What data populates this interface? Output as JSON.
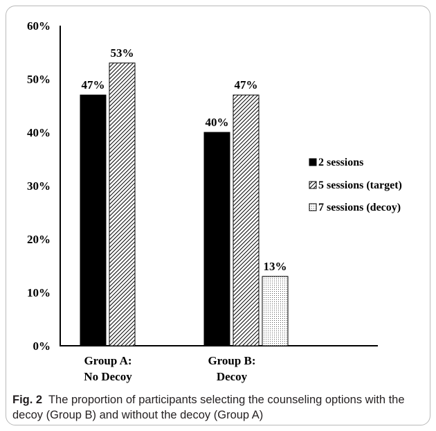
{
  "chart_data": {
    "type": "bar",
    "categories": [
      [
        "Group A:",
        "No Decoy"
      ],
      [
        "Group B:",
        "Decoy"
      ]
    ],
    "series": [
      {
        "name": "2 sessions",
        "values": [
          47,
          40
        ],
        "labels": [
          "47%",
          "40%"
        ],
        "fill": "solid"
      },
      {
        "name": "5 sessions (target)",
        "values": [
          53,
          47
        ],
        "labels": [
          "53%",
          "47%"
        ],
        "fill": "diagonal-hatch"
      },
      {
        "name": "7 sessions (decoy)",
        "values": [
          null,
          13
        ],
        "labels": [
          null,
          "13%"
        ],
        "fill": "dotted"
      }
    ],
    "yticks": [
      "0%",
      "10%",
      "20%",
      "30%",
      "40%",
      "50%",
      "60%"
    ],
    "ylim": [
      0,
      60
    ],
    "xlabel": "",
    "ylabel": "",
    "legend": "right",
    "grid": false,
    "colors": {
      "bar_solid": "#000000",
      "hatch": "#000000",
      "dots": "#000000",
      "axis": "#000000"
    }
  },
  "caption": {
    "fig": "Fig. 2",
    "text": "The proportion of participants selecting the counseling options with the decoy (Group B) and without the decoy (Group A)"
  }
}
